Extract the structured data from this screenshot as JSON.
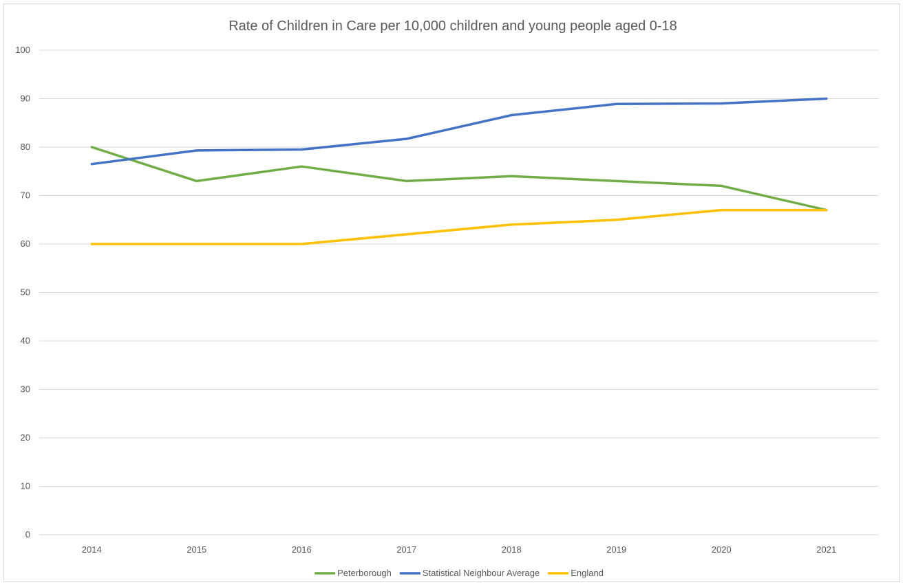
{
  "chart_data": {
    "type": "line",
    "title": "Rate of Children in Care per 10,000 children and young people aged 0-18",
    "xlabel": "",
    "ylabel": "",
    "categories": [
      "2014",
      "2015",
      "2016",
      "2017",
      "2018",
      "2019",
      "2020",
      "2021"
    ],
    "ylim": [
      0,
      100
    ],
    "yticks": [
      0,
      10,
      20,
      30,
      40,
      50,
      60,
      70,
      80,
      90,
      100
    ],
    "grid": true,
    "legend_position": "bottom",
    "series": [
      {
        "name": "Peterborough",
        "color": "#70ad47",
        "values": [
          80,
          73,
          76,
          73,
          74,
          73,
          72,
          67
        ]
      },
      {
        "name": "Statistical Neighbour Average",
        "color": "#4472c4",
        "values": [
          76.5,
          79.3,
          79.5,
          81.7,
          86.6,
          88.9,
          89,
          90
        ]
      },
      {
        "name": "England",
        "color": "#ffc000",
        "values": [
          60,
          60,
          60,
          62,
          64,
          65,
          67,
          67
        ]
      }
    ]
  }
}
